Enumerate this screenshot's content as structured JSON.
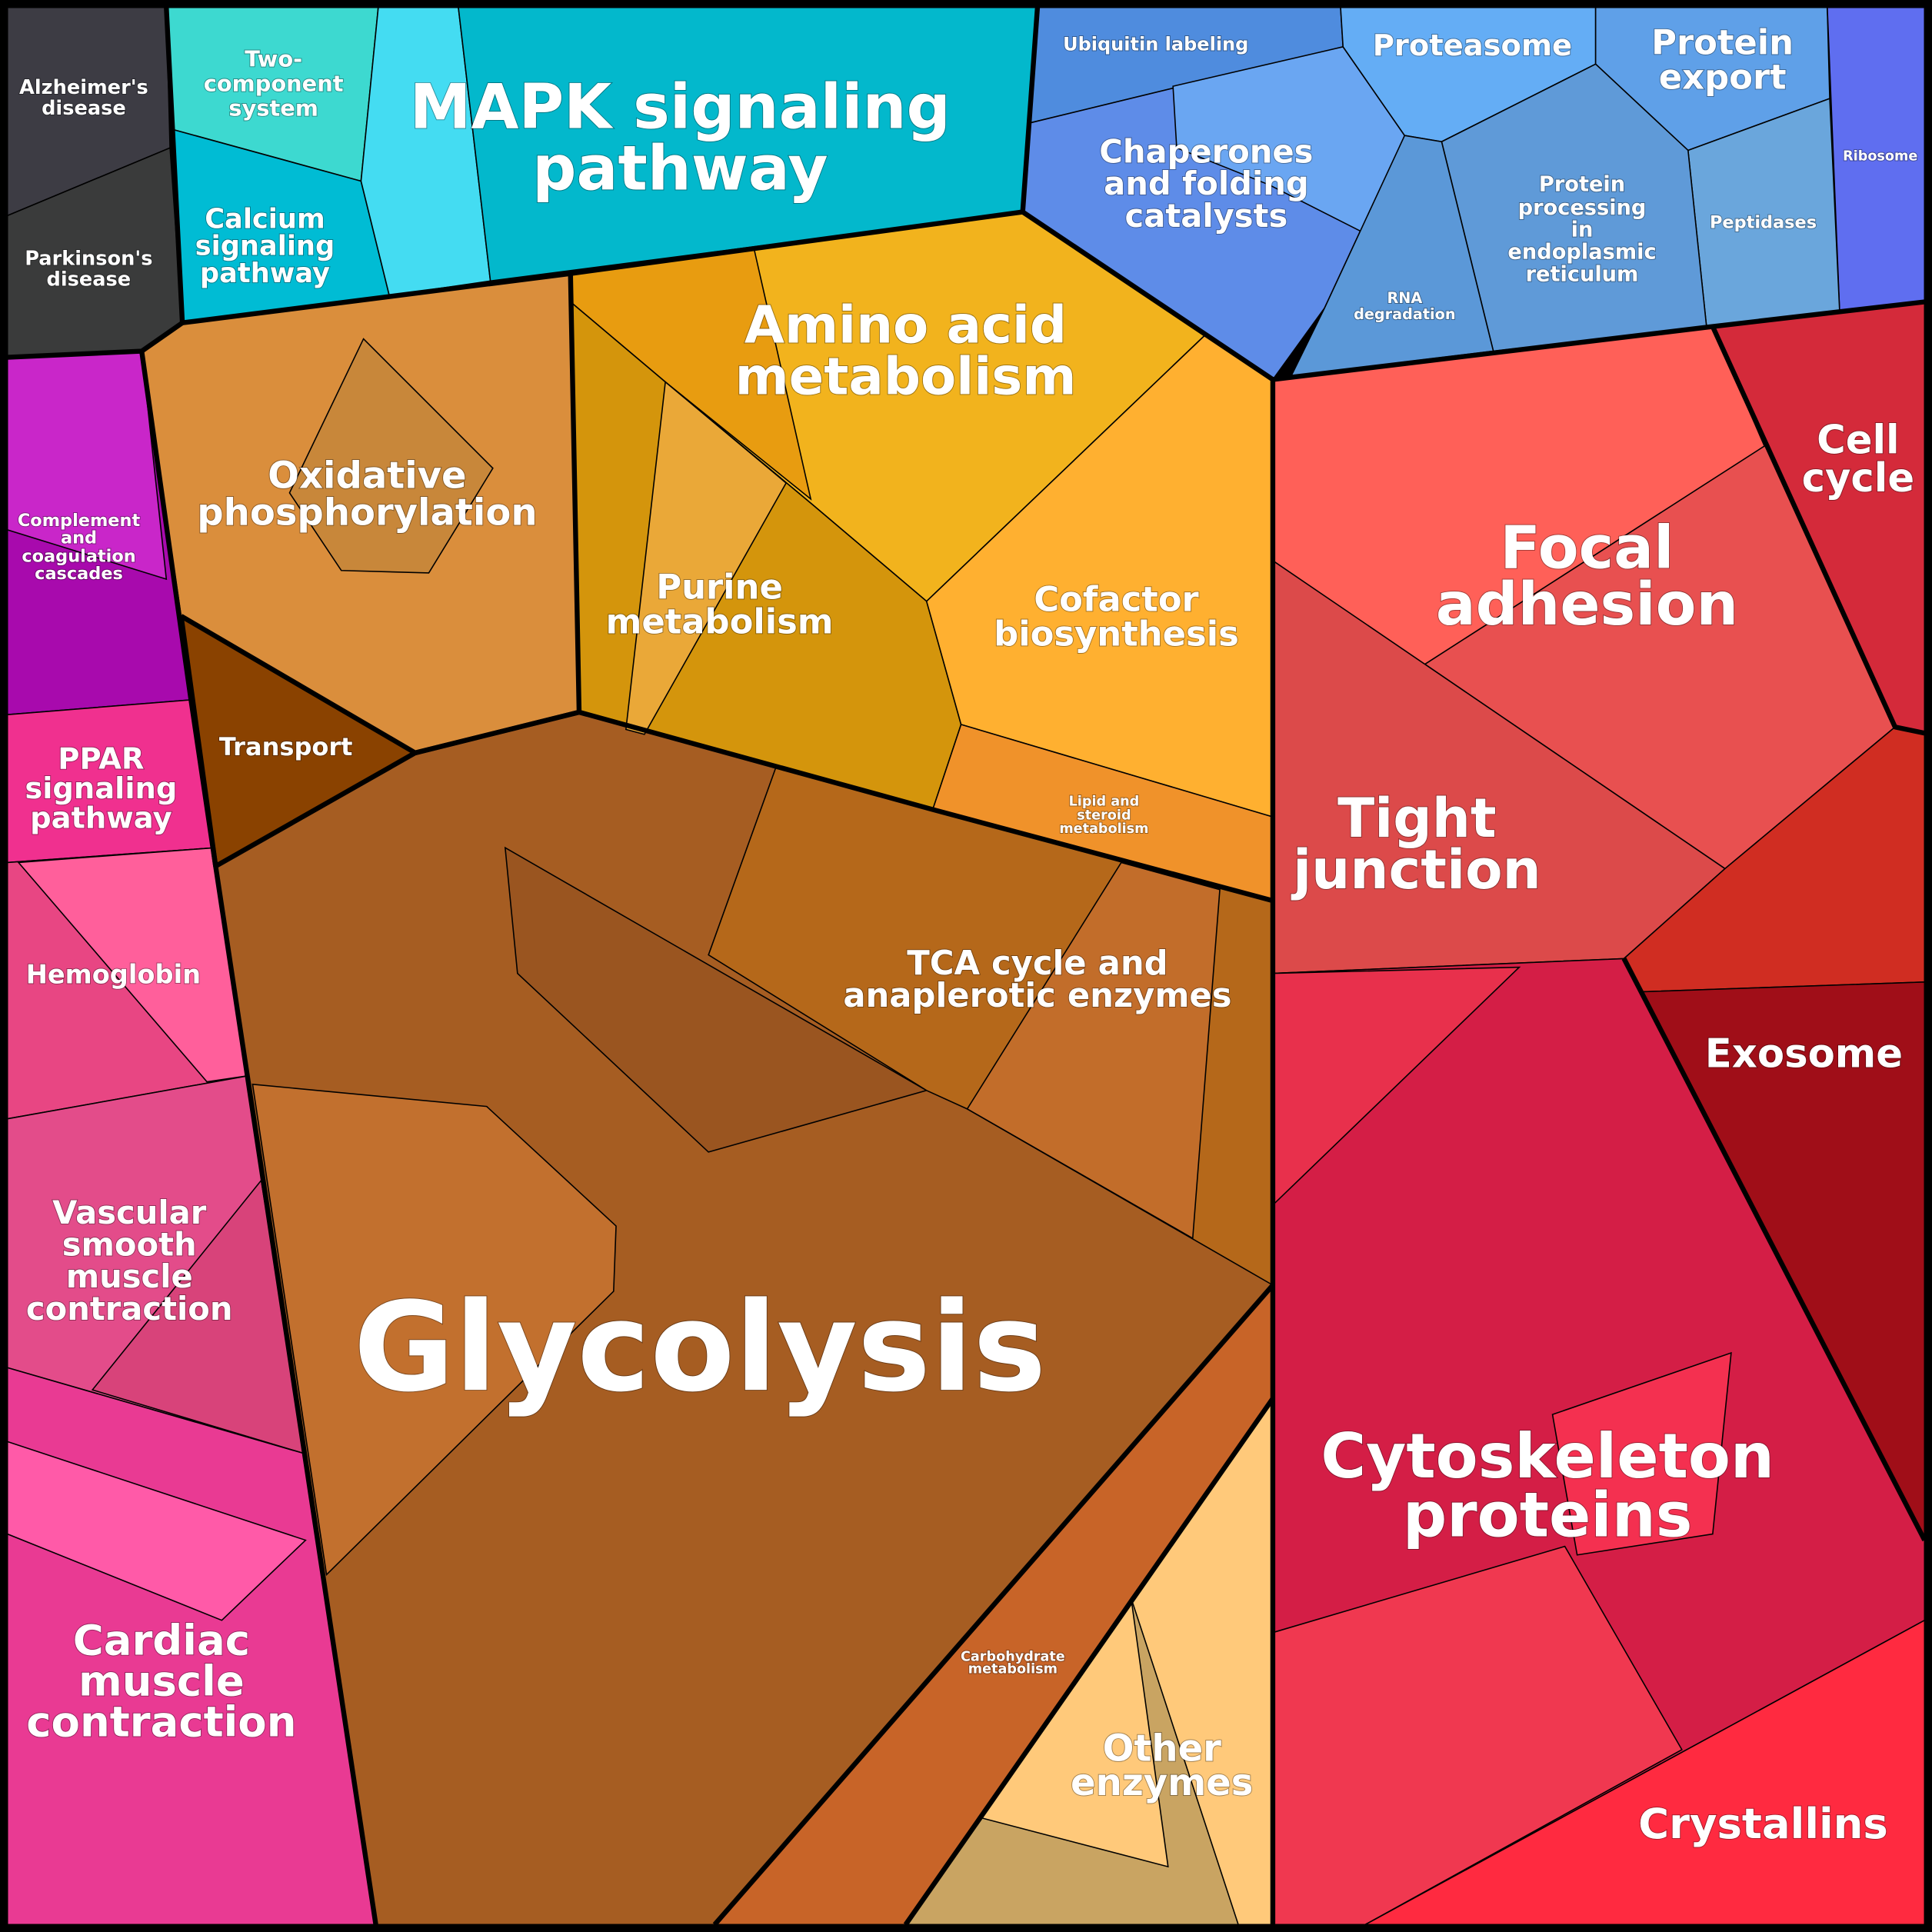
{
  "labels": {
    "alzheimers": [
      "Alzheimer's",
      "disease"
    ],
    "parkinsons": [
      "Parkinson's",
      "disease"
    ],
    "two_component": [
      "Two-",
      "component",
      "system"
    ],
    "calcium": [
      "Calcium",
      "signaling",
      "pathway"
    ],
    "mapk": [
      "MAPK signaling",
      "pathway"
    ],
    "ubiquitin": [
      "Ubiquitin labeling"
    ],
    "proteasome": [
      "Proteasome"
    ],
    "protein_export": [
      "Protein",
      "export"
    ],
    "ribosome": [
      "Ribosome"
    ],
    "chaperones": [
      "Chaperones",
      "and folding",
      "catalysts"
    ],
    "rna_degradation": [
      "RNA",
      "degradation"
    ],
    "protein_processing": [
      "Protein",
      "processing",
      "in",
      "endoplasmic",
      "reticulum"
    ],
    "peptidases": [
      "Peptidases"
    ],
    "complement": [
      "Complement",
      "and",
      "coagulation",
      "cascades"
    ],
    "ppar": [
      "PPAR",
      "signaling",
      "pathway"
    ],
    "hemoglobin": [
      "Hemoglobin"
    ],
    "vascular": [
      "Vascular",
      "smooth",
      "muscle",
      "contraction"
    ],
    "cardiac": [
      "Cardiac",
      "muscle",
      "contraction"
    ],
    "oxidative": [
      "Oxidative",
      "phosphorylation"
    ],
    "transport": [
      "Transport"
    ],
    "amino_acid": [
      "Amino acid",
      "metabolism"
    ],
    "purine": [
      "Purine",
      "metabolism"
    ],
    "cofactor": [
      "Cofactor",
      "biosynthesis"
    ],
    "lipid": [
      "Lipid and",
      "steroid",
      "metabolism"
    ],
    "tca": [
      "TCA cycle and",
      "anaplerotic enzymes"
    ],
    "glycolysis": [
      "Glycolysis"
    ],
    "carbohydrate": [
      "Carbohydrate",
      "metabolism"
    ],
    "other_enzymes": [
      "Other",
      "enzymes"
    ],
    "focal_adhesion": [
      "Focal",
      "adhesion"
    ],
    "cell_cycle": [
      "Cell",
      "cycle"
    ],
    "tight_junction": [
      "Tight",
      "junction"
    ],
    "exosome": [
      "Exosome"
    ],
    "cytoskeleton": [
      "Cytoskeleton",
      "proteins"
    ],
    "crystallins": [
      "Crystallins"
    ]
  },
  "colors": {
    "neuro": "#3d3c44",
    "signaling": "#03b8cc",
    "proteostasis": "#5f9ad8",
    "metabolism": "#a65d22",
    "immune_muscle": "#e93a93",
    "structure": "#d41e46"
  }
}
